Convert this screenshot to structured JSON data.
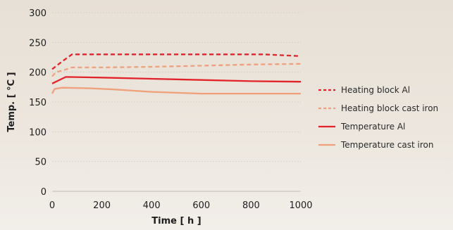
{
  "chart_data": {
    "type": "line",
    "xlabel": "Time [ h ]",
    "ylabel": "Temp. [ °C ]",
    "xlim": [
      0,
      1000
    ],
    "ylim": [
      0,
      300
    ],
    "x_ticks": [
      0,
      200,
      400,
      600,
      800,
      1000
    ],
    "y_ticks": [
      0,
      50,
      100,
      150,
      200,
      250,
      300
    ],
    "grid": "horizontal dotted",
    "legend_position": "right",
    "series": [
      {
        "name": "Heating block Al",
        "color": "#e2232a",
        "style": "dashed",
        "points": [
          [
            0,
            205
          ],
          [
            40,
            218
          ],
          [
            80,
            230
          ],
          [
            200,
            230
          ],
          [
            400,
            230
          ],
          [
            600,
            230
          ],
          [
            850,
            230
          ],
          [
            1000,
            227
          ]
        ]
      },
      {
        "name": "Heating block cast iron",
        "color": "#f0a07a",
        "style": "dashed",
        "points": [
          [
            0,
            193
          ],
          [
            15,
            200
          ],
          [
            50,
            204
          ],
          [
            80,
            208
          ],
          [
            200,
            208
          ],
          [
            400,
            209
          ],
          [
            600,
            211
          ],
          [
            800,
            213
          ],
          [
            1000,
            214
          ]
        ]
      },
      {
        "name": "Temperature Al",
        "color": "#e2232a",
        "style": "solid",
        "points": [
          [
            0,
            181
          ],
          [
            25,
            186
          ],
          [
            55,
            192
          ],
          [
            200,
            191
          ],
          [
            400,
            189
          ],
          [
            600,
            187
          ],
          [
            800,
            185
          ],
          [
            1000,
            184
          ]
        ]
      },
      {
        "name": "Temperature cast iron",
        "color": "#f0a07a",
        "style": "solid",
        "points": [
          [
            0,
            164
          ],
          [
            10,
            172
          ],
          [
            40,
            174
          ],
          [
            150,
            173
          ],
          [
            250,
            171
          ],
          [
            400,
            167
          ],
          [
            600,
            164
          ],
          [
            800,
            164
          ],
          [
            1000,
            164
          ]
        ]
      }
    ]
  }
}
